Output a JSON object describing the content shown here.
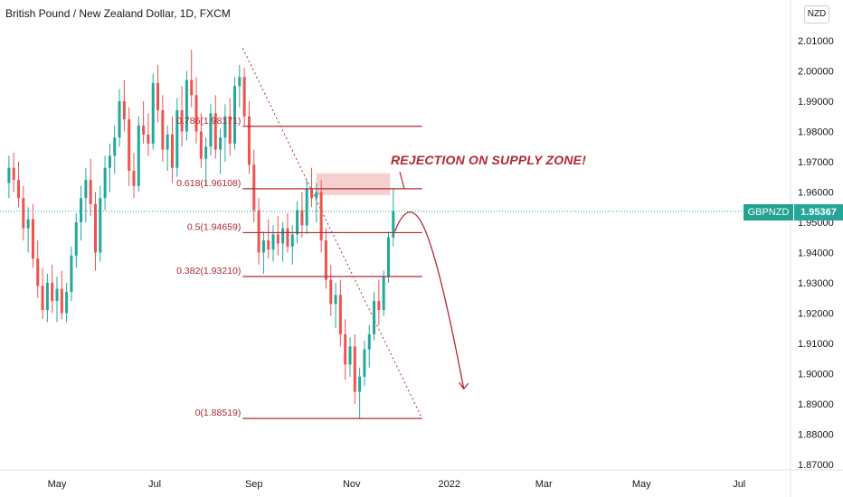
{
  "header": {
    "title": "British Pound / New Zealand Dollar, 1D, FXCM",
    "currency_button": "NZD"
  },
  "price_tag": {
    "symbol": "GBPNZD",
    "value": "1.95367"
  },
  "annotation": "REJECTION ON SUPPLY ZONE!",
  "colors": {
    "up": "#26a69a",
    "down": "#ef5350",
    "fib_line": "#b22833",
    "annotation": "#b22833",
    "supply_zone": "#f4c7c7",
    "price_line": "#26a69a"
  },
  "chart_data": {
    "type": "candlestick",
    "symbol": "GBPNZD",
    "timeframe": "1D",
    "exchange": "FXCM",
    "last_price": 1.95367,
    "y_axis": {
      "ylim": [
        1.865,
        2.02
      ],
      "tick_labels": [
        "2.01000",
        "2.00000",
        "1.99000",
        "1.98000",
        "1.97000",
        "1.96000",
        "1.95000",
        "1.94000",
        "1.93000",
        "1.92000",
        "1.91000",
        "1.90000",
        "1.89000",
        "1.88000",
        "1.87000"
      ],
      "tick_values": [
        2.01,
        2.0,
        1.99,
        1.98,
        1.97,
        1.96,
        1.95,
        1.94,
        1.93,
        1.92,
        1.91,
        1.9,
        1.89,
        1.88,
        1.87
      ]
    },
    "x_axis": {
      "tick_labels": [
        "May",
        "Jul",
        "Sep",
        "Nov",
        "2022",
        "Mar",
        "May",
        "Jul"
      ],
      "tick_dates": [
        "2021-05-01",
        "2021-07-01",
        "2021-09-01",
        "2021-11-01",
        "2022-01-01",
        "2022-03-01",
        "2022-05-01",
        "2022-07-01"
      ]
    },
    "fibonacci": {
      "levels": [
        {
          "label": "0.786(1.98171)",
          "value": 1.98171
        },
        {
          "label": "0.618(1.96108)",
          "value": 1.96108
        },
        {
          "label": "0.5(1.94659)",
          "value": 1.94659
        },
        {
          "label": "0.382(1.93210)",
          "value": 1.9321
        },
        {
          "label": "0(1.88519)",
          "value": 1.88519
        }
      ],
      "start_date": "2021-08-25",
      "end_date": "2021-12-15"
    },
    "trendline": {
      "from": {
        "date": "2021-08-25",
        "value": 2.0075
      },
      "to": {
        "date": "2021-12-15",
        "value": 1.8852
      }
    },
    "supply_zone": {
      "from_date": "2021-10-10",
      "to_date": "2021-11-25",
      "top": 1.9662,
      "bottom": 1.959
    },
    "projection": {
      "from": {
        "date": "2021-11-28",
        "value": 1.947
      },
      "peak": {
        "date": "2021-12-10",
        "value": 1.952
      },
      "to": {
        "date": "2022-01-10",
        "value": 1.895
      }
    },
    "candles": [
      {
        "date": "2021-04-01",
        "open": 1.963,
        "high": 1.972,
        "low": 1.958,
        "close": 1.968
      },
      {
        "date": "2021-04-04",
        "open": 1.968,
        "high": 1.973,
        "low": 1.96,
        "close": 1.964
      },
      {
        "date": "2021-04-07",
        "open": 1.964,
        "high": 1.97,
        "low": 1.955,
        "close": 1.958
      },
      {
        "date": "2021-04-10",
        "open": 1.958,
        "high": 1.962,
        "low": 1.944,
        "close": 1.948
      },
      {
        "date": "2021-04-13",
        "open": 1.948,
        "high": 1.955,
        "low": 1.94,
        "close": 1.951
      },
      {
        "date": "2021-04-16",
        "open": 1.951,
        "high": 1.956,
        "low": 1.935,
        "close": 1.938
      },
      {
        "date": "2021-04-19",
        "open": 1.938,
        "high": 1.944,
        "low": 1.925,
        "close": 1.929
      },
      {
        "date": "2021-04-22",
        "open": 1.929,
        "high": 1.935,
        "low": 1.918,
        "close": 1.921
      },
      {
        "date": "2021-04-25",
        "open": 1.921,
        "high": 1.933,
        "low": 1.917,
        "close": 1.93
      },
      {
        "date": "2021-04-28",
        "open": 1.93,
        "high": 1.936,
        "low": 1.92,
        "close": 1.924
      },
      {
        "date": "2021-05-01",
        "open": 1.924,
        "high": 1.932,
        "low": 1.917,
        "close": 1.928
      },
      {
        "date": "2021-05-04",
        "open": 1.928,
        "high": 1.934,
        "low": 1.918,
        "close": 1.92
      },
      {
        "date": "2021-05-07",
        "open": 1.92,
        "high": 1.93,
        "low": 1.917,
        "close": 1.927
      },
      {
        "date": "2021-05-10",
        "open": 1.927,
        "high": 1.942,
        "low": 1.924,
        "close": 1.939
      },
      {
        "date": "2021-05-13",
        "open": 1.939,
        "high": 1.953,
        "low": 1.935,
        "close": 1.95
      },
      {
        "date": "2021-05-16",
        "open": 1.95,
        "high": 1.962,
        "low": 1.944,
        "close": 1.958
      },
      {
        "date": "2021-05-19",
        "open": 1.958,
        "high": 1.968,
        "low": 1.95,
        "close": 1.964
      },
      {
        "date": "2021-05-22",
        "open": 1.964,
        "high": 1.971,
        "low": 1.952,
        "close": 1.956
      },
      {
        "date": "2021-05-25",
        "open": 1.956,
        "high": 1.96,
        "low": 1.934,
        "close": 1.94
      },
      {
        "date": "2021-05-28",
        "open": 1.94,
        "high": 1.962,
        "low": 1.937,
        "close": 1.958
      },
      {
        "date": "2021-05-31",
        "open": 1.958,
        "high": 1.972,
        "low": 1.954,
        "close": 1.968
      },
      {
        "date": "2021-06-03",
        "open": 1.968,
        "high": 1.976,
        "low": 1.96,
        "close": 1.972
      },
      {
        "date": "2021-06-06",
        "open": 1.972,
        "high": 1.982,
        "low": 1.966,
        "close": 1.978
      },
      {
        "date": "2021-06-09",
        "open": 1.978,
        "high": 1.994,
        "low": 1.975,
        "close": 1.99
      },
      {
        "date": "2021-06-12",
        "open": 1.99,
        "high": 1.997,
        "low": 1.98,
        "close": 1.984
      },
      {
        "date": "2021-06-15",
        "open": 1.984,
        "high": 1.988,
        "low": 1.962,
        "close": 1.967
      },
      {
        "date": "2021-06-18",
        "open": 1.967,
        "high": 1.973,
        "low": 1.958,
        "close": 1.962
      },
      {
        "date": "2021-06-21",
        "open": 1.962,
        "high": 1.985,
        "low": 1.96,
        "close": 1.982
      },
      {
        "date": "2021-06-24",
        "open": 1.982,
        "high": 1.99,
        "low": 1.976,
        "close": 1.979
      },
      {
        "date": "2021-06-27",
        "open": 1.979,
        "high": 1.986,
        "low": 1.972,
        "close": 1.976
      },
      {
        "date": "2021-06-30",
        "open": 1.976,
        "high": 1.999,
        "low": 1.974,
        "close": 1.996
      },
      {
        "date": "2021-07-03",
        "open": 1.996,
        "high": 2.002,
        "low": 1.983,
        "close": 1.987
      },
      {
        "date": "2021-07-06",
        "open": 1.987,
        "high": 1.992,
        "low": 1.97,
        "close": 1.974
      },
      {
        "date": "2021-07-09",
        "open": 1.974,
        "high": 1.982,
        "low": 1.967,
        "close": 1.979
      },
      {
        "date": "2021-07-12",
        "open": 1.979,
        "high": 1.985,
        "low": 1.963,
        "close": 1.968
      },
      {
        "date": "2021-07-15",
        "open": 1.968,
        "high": 1.991,
        "low": 1.965,
        "close": 1.987
      },
      {
        "date": "2021-07-18",
        "open": 1.987,
        "high": 1.995,
        "low": 1.975,
        "close": 1.98
      },
      {
        "date": "2021-07-21",
        "open": 1.98,
        "high": 2.0,
        "low": 1.977,
        "close": 1.997
      },
      {
        "date": "2021-07-24",
        "open": 1.997,
        "high": 2.007,
        "low": 1.988,
        "close": 1.992
      },
      {
        "date": "2021-07-27",
        "open": 1.992,
        "high": 1.998,
        "low": 1.976,
        "close": 1.98
      },
      {
        "date": "2021-07-30",
        "open": 1.98,
        "high": 1.986,
        "low": 1.968,
        "close": 1.971
      },
      {
        "date": "2021-08-02",
        "open": 1.971,
        "high": 1.978,
        "low": 1.962,
        "close": 1.975
      },
      {
        "date": "2021-08-05",
        "open": 1.975,
        "high": 1.989,
        "low": 1.972,
        "close": 1.986
      },
      {
        "date": "2021-08-08",
        "open": 1.986,
        "high": 1.992,
        "low": 1.971,
        "close": 1.974
      },
      {
        "date": "2021-08-11",
        "open": 1.974,
        "high": 1.981,
        "low": 1.966,
        "close": 1.978
      },
      {
        "date": "2021-08-14",
        "open": 1.978,
        "high": 1.989,
        "low": 1.97,
        "close": 1.985
      },
      {
        "date": "2021-08-17",
        "open": 1.985,
        "high": 1.991,
        "low": 1.972,
        "close": 1.976
      },
      {
        "date": "2021-08-20",
        "open": 1.976,
        "high": 1.998,
        "low": 1.974,
        "close": 1.995
      },
      {
        "date": "2021-08-23",
        "open": 1.995,
        "high": 2.002,
        "low": 1.988,
        "close": 1.998
      },
      {
        "date": "2021-08-26",
        "open": 1.998,
        "high": 2.001,
        "low": 1.982,
        "close": 1.985
      },
      {
        "date": "2021-08-29",
        "open": 1.985,
        "high": 1.99,
        "low": 1.966,
        "close": 1.969
      },
      {
        "date": "2021-09-01",
        "open": 1.969,
        "high": 1.974,
        "low": 1.95,
        "close": 1.954
      },
      {
        "date": "2021-09-04",
        "open": 1.954,
        "high": 1.958,
        "low": 1.936,
        "close": 1.94
      },
      {
        "date": "2021-09-07",
        "open": 1.94,
        "high": 1.947,
        "low": 1.933,
        "close": 1.944
      },
      {
        "date": "2021-09-10",
        "open": 1.944,
        "high": 1.951,
        "low": 1.938,
        "close": 1.941
      },
      {
        "date": "2021-09-13",
        "open": 1.941,
        "high": 1.949,
        "low": 1.937,
        "close": 1.946
      },
      {
        "date": "2021-09-16",
        "open": 1.946,
        "high": 1.952,
        "low": 1.939,
        "close": 1.943
      },
      {
        "date": "2021-09-19",
        "open": 1.943,
        "high": 1.95,
        "low": 1.937,
        "close": 1.948
      },
      {
        "date": "2021-09-22",
        "open": 1.948,
        "high": 1.953,
        "low": 1.94,
        "close": 1.942
      },
      {
        "date": "2021-09-25",
        "open": 1.942,
        "high": 1.949,
        "low": 1.936,
        "close": 1.946
      },
      {
        "date": "2021-09-28",
        "open": 1.946,
        "high": 1.957,
        "low": 1.943,
        "close": 1.954
      },
      {
        "date": "2021-10-01",
        "open": 1.954,
        "high": 1.96,
        "low": 1.945,
        "close": 1.949
      },
      {
        "date": "2021-10-04",
        "open": 1.949,
        "high": 1.964,
        "low": 1.946,
        "close": 1.961
      },
      {
        "date": "2021-10-07",
        "open": 1.961,
        "high": 1.968,
        "low": 1.955,
        "close": 1.958
      },
      {
        "date": "2021-10-10",
        "open": 1.958,
        "high": 1.963,
        "low": 1.95,
        "close": 1.96
      },
      {
        "date": "2021-10-13",
        "open": 1.96,
        "high": 1.964,
        "low": 1.94,
        "close": 1.944
      },
      {
        "date": "2021-10-16",
        "open": 1.944,
        "high": 1.948,
        "low": 1.928,
        "close": 1.931
      },
      {
        "date": "2021-10-19",
        "open": 1.931,
        "high": 1.936,
        "low": 1.919,
        "close": 1.923
      },
      {
        "date": "2021-10-22",
        "open": 1.923,
        "high": 1.93,
        "low": 1.915,
        "close": 1.926
      },
      {
        "date": "2021-10-25",
        "open": 1.926,
        "high": 1.931,
        "low": 1.909,
        "close": 1.913
      },
      {
        "date": "2021-10-28",
        "open": 1.913,
        "high": 1.918,
        "low": 1.898,
        "close": 1.903
      },
      {
        "date": "2021-10-31",
        "open": 1.903,
        "high": 1.912,
        "low": 1.899,
        "close": 1.909
      },
      {
        "date": "2021-11-03",
        "open": 1.909,
        "high": 1.913,
        "low": 1.89,
        "close": 1.894
      },
      {
        "date": "2021-11-06",
        "open": 1.894,
        "high": 1.902,
        "low": 1.885,
        "close": 1.899
      },
      {
        "date": "2021-11-09",
        "open": 1.899,
        "high": 1.911,
        "low": 1.896,
        "close": 1.908
      },
      {
        "date": "2021-11-12",
        "open": 1.908,
        "high": 1.916,
        "low": 1.902,
        "close": 1.913
      },
      {
        "date": "2021-11-15",
        "open": 1.913,
        "high": 1.927,
        "low": 1.911,
        "close": 1.924
      },
      {
        "date": "2021-11-18",
        "open": 1.924,
        "high": 1.931,
        "low": 1.916,
        "close": 1.921
      },
      {
        "date": "2021-11-21",
        "open": 1.921,
        "high": 1.934,
        "low": 1.919,
        "close": 1.932
      },
      {
        "date": "2021-11-24",
        "open": 1.932,
        "high": 1.947,
        "low": 1.93,
        "close": 1.945
      },
      {
        "date": "2021-11-27",
        "open": 1.945,
        "high": 1.961,
        "low": 1.942,
        "close": 1.9537
      }
    ]
  }
}
